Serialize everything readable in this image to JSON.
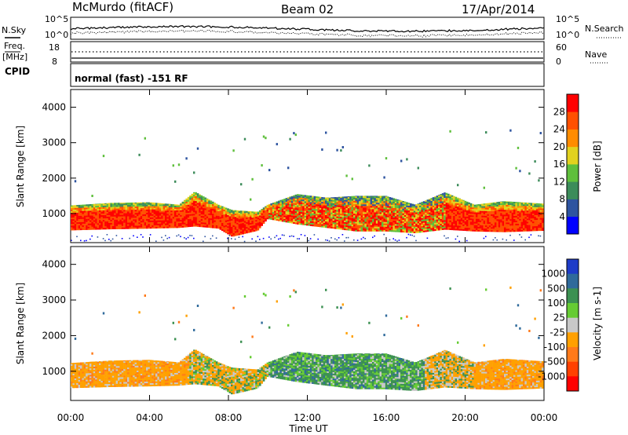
{
  "header": {
    "station": "McMurdo (fitACF)",
    "beam": "Beam 02",
    "date": "17/Apr/2014"
  },
  "strip": {
    "nsky_label": "N.Sky",
    "nsearch_label": "N.Search",
    "noise_ticks_left": [
      "10^5",
      "10^0"
    ],
    "noise_ticks_right": [
      "10^5",
      "10^0"
    ],
    "freq_label_1": "Freq.",
    "freq_label_2": "[MHz]",
    "freq_ticks": [
      "18",
      "8"
    ],
    "nave_ticks": [
      "60",
      "0"
    ],
    "nave_label": "Nave",
    "cpid_label": "CPID",
    "mode_text": "normal (fast) -151 RF"
  },
  "colors": {
    "power_scale": [
      "#0000ff",
      "#2e54a0",
      "#3c8c5a",
      "#5fbf3c",
      "#e2d21f",
      "#ff8c00",
      "#ff5000",
      "#ff0000"
    ],
    "velocity_scale": [
      "#1e3cc8",
      "#2f6a9b",
      "#3c9152",
      "#66cc33",
      "#c8c8c8",
      "#ffa000",
      "#ff7a1a",
      "#ff4000",
      "#ff0000"
    ],
    "ground_scatter": "#9a9a9a"
  },
  "chart_data": [
    {
      "type": "heatmap",
      "name": "power",
      "ylabel": "Slant Range [km]",
      "xlabel": "",
      "colorbar_label": "Power [dB]",
      "x_ticks": [
        "00:00",
        "04:00",
        "08:00",
        "12:00",
        "16:00",
        "20:00",
        "00:00"
      ],
      "y_ticks": [
        1000,
        2000,
        3000,
        4000
      ],
      "xlim_hours": [
        0,
        24
      ],
      "ylim_km": [
        180,
        4500
      ],
      "colorbar_ticks": [
        "4",
        "8",
        "12",
        "16",
        "20",
        "24",
        "28"
      ],
      "colorbar_range": [
        0,
        30
      ],
      "main_band": [
        {
          "hour": 0.0,
          "lower_km": 530,
          "upper_km": 1230
        },
        {
          "hour": 2.0,
          "lower_km": 560,
          "upper_km": 1300
        },
        {
          "hour": 4.0,
          "lower_km": 580,
          "upper_km": 1320
        },
        {
          "hour": 5.5,
          "lower_km": 600,
          "upper_km": 1250
        },
        {
          "hour": 6.3,
          "lower_km": 640,
          "upper_km": 1620
        },
        {
          "hour": 7.5,
          "lower_km": 580,
          "upper_km": 1250
        },
        {
          "hour": 8.2,
          "lower_km": 350,
          "upper_km": 1100
        },
        {
          "hour": 9.5,
          "lower_km": 520,
          "upper_km": 1050
        },
        {
          "hour": 10.0,
          "lower_km": 850,
          "upper_km": 1250
        },
        {
          "hour": 11.5,
          "lower_km": 700,
          "upper_km": 1550
        },
        {
          "hour": 13.0,
          "lower_km": 600,
          "upper_km": 1450
        },
        {
          "hour": 14.5,
          "lower_km": 500,
          "upper_km": 1500
        },
        {
          "hour": 16.0,
          "lower_km": 500,
          "upper_km": 1500
        },
        {
          "hour": 17.5,
          "lower_km": 450,
          "upper_km": 1250
        },
        {
          "hour": 19.0,
          "lower_km": 550,
          "upper_km": 1600
        },
        {
          "hour": 20.5,
          "lower_km": 500,
          "upper_km": 1250
        },
        {
          "hour": 22.0,
          "lower_km": 480,
          "upper_km": 1350
        },
        {
          "hour": 24.0,
          "lower_km": 520,
          "upper_km": 1280
        }
      ]
    },
    {
      "type": "heatmap",
      "name": "velocity",
      "ylabel": "Slant Range [km]",
      "xlabel": "Time UT",
      "colorbar_label": "Velocity [m s-1]",
      "x_ticks": [
        "00:00",
        "04:00",
        "08:00",
        "12:00",
        "16:00",
        "20:00",
        "00:00"
      ],
      "y_ticks": [
        1000,
        2000,
        3000,
        4000
      ],
      "xlim_hours": [
        0,
        24
      ],
      "ylim_km": [
        180,
        4500
      ],
      "colorbar_ticks": [
        "-1000",
        "-500",
        "-100",
        "-25",
        "25",
        "100",
        "500",
        "1000"
      ],
      "colorbar_range": [
        -1500,
        1500
      ]
    }
  ]
}
